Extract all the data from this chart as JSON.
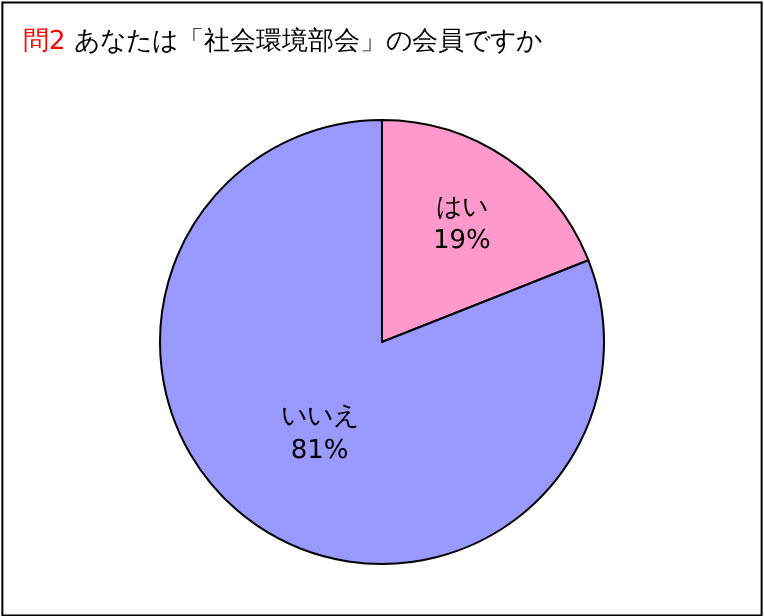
{
  "chart_data": {
    "type": "pie",
    "title": "問2 あなたは「社会環境部会」の会員ですか",
    "categories": [
      "はい",
      "いいえ"
    ],
    "values": [
      19,
      81
    ],
    "value_labels": [
      "19%",
      "81%"
    ],
    "colors": [
      "#ff99cc",
      "#9999ff"
    ],
    "legend": false
  }
}
